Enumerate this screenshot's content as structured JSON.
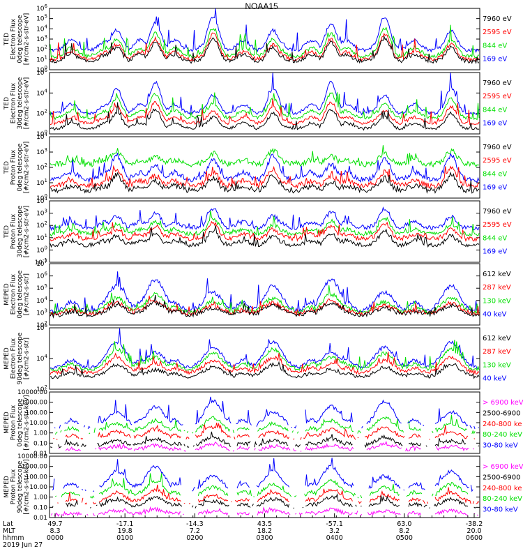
{
  "title": "NOAA15",
  "colors": {
    "blue": "#0000ff",
    "red": "#ff0000",
    "green": "#00e000",
    "black": "#000000",
    "magenta": "#ff00ff"
  },
  "chart_data": [
    {
      "type": "line",
      "ylabel": [
        "TED",
        "Electron Flux",
        "0deg telescope",
        "[#/cm2-s-str-eV]"
      ],
      "y_ticks": [
        "10^6",
        "10^5",
        "10^4",
        "10^3",
        "10^2",
        "10^1",
        "10^0"
      ],
      "log": true,
      "ylim_exp": [
        0,
        6
      ],
      "series": [
        {
          "name": "7960 eV",
          "color": "black",
          "leg_color": "#000000",
          "base": 0.8,
          "amp": 2.3
        },
        {
          "name": "2595 eV",
          "color": "red",
          "leg_color": "#ff0000",
          "base": 1.0,
          "amp": 2.5
        },
        {
          "name": "844 eV",
          "color": "green",
          "leg_color": "#00e000",
          "base": 1.3,
          "amp": 2.8
        },
        {
          "name": "169 eV",
          "color": "blue",
          "leg_color": "#0000ff",
          "base": 1.9,
          "amp": 3.3
        }
      ]
    },
    {
      "type": "line",
      "ylabel": [
        "TED",
        "Electron Flux",
        "30deg telescope",
        "[#/cm2-s-str-eV]"
      ],
      "y_ticks": [
        "10^6",
        "10^4",
        "10^2",
        "10^0"
      ],
      "log": true,
      "ylim_exp": [
        0,
        7
      ],
      "series": [
        {
          "name": "7960 eV",
          "color": "black",
          "leg_color": "#000000",
          "base": 0.6,
          "amp": 2.2
        },
        {
          "name": "2595 eV",
          "color": "red",
          "leg_color": "#ff0000",
          "base": 1.2,
          "amp": 2.4
        },
        {
          "name": "844 eV",
          "color": "green",
          "leg_color": "#00e000",
          "base": 1.8,
          "amp": 2.8
        },
        {
          "name": "169 eV",
          "color": "blue",
          "leg_color": "#0000ff",
          "base": 2.3,
          "amp": 3.6
        }
      ]
    },
    {
      "type": "line",
      "ylabel": [
        "TED",
        "Proton Flux",
        "0deg telescope",
        "[#/cm2-s-str-eV]"
      ],
      "y_ticks": [
        "10^4",
        "10^3",
        "10^2",
        "10^1",
        "10^0"
      ],
      "log": true,
      "ylim_exp": [
        0,
        4
      ],
      "series": [
        {
          "name": "7960 eV",
          "color": "black",
          "leg_color": "#000000",
          "base": 0.5,
          "amp": 1.0
        },
        {
          "name": "2595 eV",
          "color": "red",
          "leg_color": "#ff0000",
          "base": 0.8,
          "amp": 1.1
        },
        {
          "name": "844 eV",
          "color": "green",
          "leg_color": "#00e000",
          "base": 2.2,
          "amp": 0.9
        },
        {
          "name": "169 eV",
          "color": "blue",
          "leg_color": "#0000ff",
          "base": 1.2,
          "amp": 1.6
        }
      ]
    },
    {
      "type": "line",
      "ylabel": [
        "TED",
        "Proton Flux",
        "30deg telescope",
        "[#/cm2-s-str-eV]"
      ],
      "y_ticks": [
        "10^4",
        "10^3",
        "10^2",
        "10^1",
        "10^0",
        "10^-1"
      ],
      "log": true,
      "ylim_exp": [
        -1,
        4
      ],
      "series": [
        {
          "name": "7960 eV",
          "color": "black",
          "leg_color": "#000000",
          "base": 0.4,
          "amp": 1.2
        },
        {
          "name": "2595 eV",
          "color": "red",
          "leg_color": "#ff0000",
          "base": 0.9,
          "amp": 1.3
        },
        {
          "name": "844 eV",
          "color": "green",
          "leg_color": "#00e000",
          "base": 1.3,
          "amp": 1.3
        },
        {
          "name": "169 eV",
          "color": "blue",
          "leg_color": "#0000ff",
          "base": 1.8,
          "amp": 1.6
        }
      ]
    },
    {
      "type": "line",
      "ylabel": [
        "MEPED",
        "Electron Flux",
        "0deg telescope",
        "[#/cm2-s-str]"
      ],
      "y_ticks": [
        "10^7",
        "10^6",
        "10^5",
        "10^4",
        "10^3",
        "10^2"
      ],
      "log": true,
      "ylim_exp": [
        2,
        7
      ],
      "series": [
        {
          "name": "612 keV",
          "color": "black",
          "leg_color": "#000000",
          "base": 2.8,
          "amp": 1.0
        },
        {
          "name": "287 keV",
          "color": "red",
          "leg_color": "#ff0000",
          "base": 2.9,
          "amp": 1.1
        },
        {
          "name": "130 keV",
          "color": "green",
          "leg_color": "#00e000",
          "base": 3.0,
          "amp": 1.5
        },
        {
          "name": "40 keV",
          "color": "blue",
          "leg_color": "#0000ff",
          "base": 3.1,
          "amp": 2.6
        }
      ]
    },
    {
      "type": "line",
      "ylabel": [
        "MEPED",
        "Electron Flux",
        "90deg telescope",
        "[#/cm2-s-str]"
      ],
      "y_ticks": [
        "10^6",
        "10^4",
        "10^2"
      ],
      "log": true,
      "ylim_exp": [
        1,
        7
      ],
      "series": [
        {
          "name": "612 keV",
          "color": "black",
          "leg_color": "#000000",
          "base": 2.2,
          "amp": 1.2
        },
        {
          "name": "287 keV",
          "color": "red",
          "leg_color": "#ff0000",
          "base": 2.6,
          "amp": 1.5
        },
        {
          "name": "130 keV",
          "color": "green",
          "leg_color": "#00e000",
          "base": 2.9,
          "amp": 2.0
        },
        {
          "name": "40 keV",
          "color": "blue",
          "leg_color": "#0000ff",
          "base": 3.1,
          "amp": 2.5
        }
      ]
    },
    {
      "type": "line",
      "ylabel": [
        "MEPED",
        "Proton Flux",
        "0deg telescope",
        "[#/cm2-s-str-keV]"
      ],
      "y_ticks": [
        "10000.00",
        "1000.00",
        "100.00",
        "10.00",
        "1.00",
        "0.10",
        "0.01"
      ],
      "log": true,
      "ylim_exp": [
        -2,
        4
      ],
      "series": [
        {
          "name": "> 6900 keV",
          "color": "magenta",
          "leg_color": "#ff00ff",
          "base": -1.7,
          "amp": 0.6
        },
        {
          "name": "2500-6900",
          "color": "black",
          "leg_color": "#000000",
          "base": -1.3,
          "amp": 0.9
        },
        {
          "name": "240-800 ke",
          "color": "red",
          "leg_color": "#ff0000",
          "base": -0.6,
          "amp": 1.2
        },
        {
          "name": "80-240 keV",
          "color": "green",
          "leg_color": "#00e000",
          "base": 0.0,
          "amp": 1.5
        },
        {
          "name": "30-80 keV",
          "color": "blue",
          "leg_color": "#0000ff",
          "base": 0.5,
          "amp": 2.6
        }
      ]
    },
    {
      "type": "line",
      "ylabel": [
        "MEPED",
        "Proton Flux",
        "90deg telescope",
        "[#/cm2-s-str-keV]"
      ],
      "y_ticks": [
        "10000.00",
        "1000.00",
        "100.00",
        "10.00",
        "1.00",
        "0.10",
        "0.01"
      ],
      "log": true,
      "ylim_exp": [
        -2,
        4
      ],
      "series": [
        {
          "name": "> 6900 keV",
          "color": "magenta",
          "leg_color": "#ff00ff",
          "base": -1.7,
          "amp": 0.5
        },
        {
          "name": "2500-6900",
          "color": "black",
          "leg_color": "#000000",
          "base": -1.0,
          "amp": 1.0
        },
        {
          "name": "240-800 ke",
          "color": "red",
          "leg_color": "#ff0000",
          "base": -0.6,
          "amp": 1.3
        },
        {
          "name": "80-240 keV",
          "color": "green",
          "leg_color": "#00e000",
          "base": 0.0,
          "amp": 1.6
        },
        {
          "name": "30-80 keV",
          "color": "blue",
          "leg_color": "#0000ff",
          "base": 0.6,
          "amp": 2.4
        }
      ]
    }
  ],
  "x_axis": {
    "labels": [
      "Lat",
      "MLT",
      "hhmm",
      "2019 Jun 27"
    ],
    "ticks": [
      {
        "lat": "49.7",
        "mlt": "8.3",
        "hhmm": "0000"
      },
      {
        "lat": "-17.1",
        "mlt": "19.8",
        "hhmm": "0100"
      },
      {
        "lat": "-14.3",
        "mlt": "7.2",
        "hhmm": "0200"
      },
      {
        "lat": "43.5",
        "mlt": "18.2",
        "hhmm": "0300"
      },
      {
        "lat": "-57.1",
        "mlt": "3.2",
        "hhmm": "0400"
      },
      {
        "lat": "63.0",
        "mlt": "8.2",
        "hhmm": "0500"
      },
      {
        "lat": "-38.2",
        "mlt": "20.0",
        "hhmm": "0600"
      }
    ]
  }
}
